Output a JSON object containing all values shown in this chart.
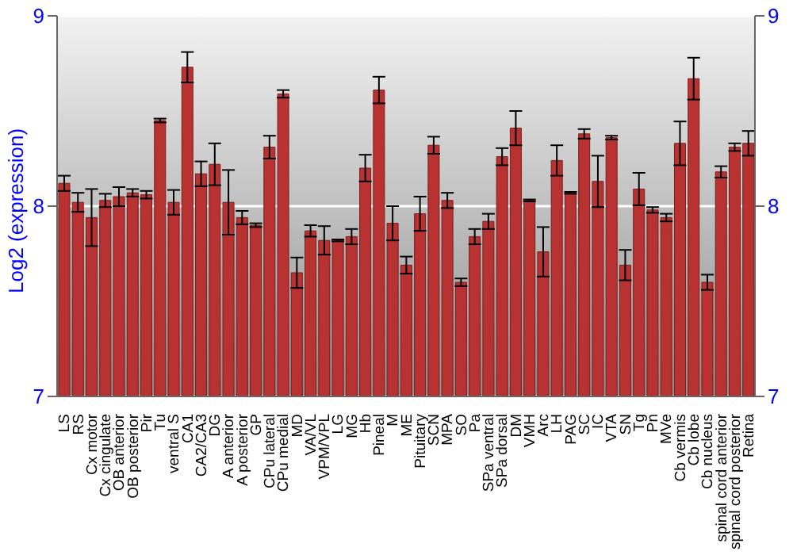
{
  "chart_data": {
    "type": "bar",
    "ylabel": "Log2 (expression)",
    "categories": [
      "LS",
      "RS",
      "Cx motor",
      "Cx cingulate",
      "OB anterior",
      "OB posterior",
      "Pir",
      "Tu",
      "ventral S",
      "CA1",
      "CA2/CA3",
      "DG",
      "A anterior",
      "A posterior",
      "GP",
      "CPu lateral",
      "CPu medial",
      "MD",
      "VA/VL",
      "VPM/VPL",
      "LG",
      "MG",
      "Hb",
      "Pineal",
      "M",
      "ME",
      "Pituitary",
      "SCN",
      "MPA",
      "SO",
      "Pa",
      "SPa ventral",
      "SPa dorsal",
      "DM",
      "VMH",
      "Arc",
      "LH",
      "PAG",
      "SC",
      "IC",
      "VTA",
      "SN",
      "Tg",
      "Pn",
      "MVe",
      "Cb vermis",
      "Cb lobe",
      "Cb nucleus",
      "spinal cord anterior",
      "spinal cord posterior",
      "Retina"
    ],
    "values": [
      8.12,
      8.02,
      7.94,
      8.03,
      8.05,
      8.07,
      8.06,
      8.45,
      8.02,
      8.73,
      8.17,
      8.22,
      8.02,
      7.94,
      7.9,
      8.31,
      8.59,
      7.65,
      7.87,
      7.82,
      7.82,
      7.84,
      8.2,
      8.61,
      7.91,
      7.69,
      7.96,
      8.32,
      8.03,
      7.6,
      7.84,
      7.92,
      8.26,
      8.41,
      8.03,
      7.76,
      8.24,
      8.07,
      8.38,
      8.13,
      8.36,
      7.69,
      8.09,
      7.98,
      7.94,
      8.33,
      8.67,
      7.6,
      8.18,
      8.31,
      8.33
    ],
    "errors": [
      0.04,
      0.05,
      0.15,
      0.035,
      0.05,
      0.02,
      0.02,
      0.01,
      0.065,
      0.08,
      0.065,
      0.11,
      0.17,
      0.035,
      0.01,
      0.06,
      0.02,
      0.08,
      0.03,
      0.075,
      0.005,
      0.04,
      0.07,
      0.07,
      0.09,
      0.045,
      0.09,
      0.045,
      0.04,
      0.02,
      0.04,
      0.04,
      0.045,
      0.09,
      0.005,
      0.13,
      0.08,
      0.005,
      0.025,
      0.135,
      0.01,
      0.08,
      0.085,
      0.015,
      0.02,
      0.115,
      0.11,
      0.04,
      0.03,
      0.02,
      0.065
    ],
    "color": "#b83232",
    "ylim": [
      7,
      9
    ],
    "yticks": [
      7,
      8,
      9
    ],
    "y2lim": [
      7,
      9
    ],
    "y2ticks": [
      7,
      8,
      9
    ],
    "grid": "y"
  }
}
